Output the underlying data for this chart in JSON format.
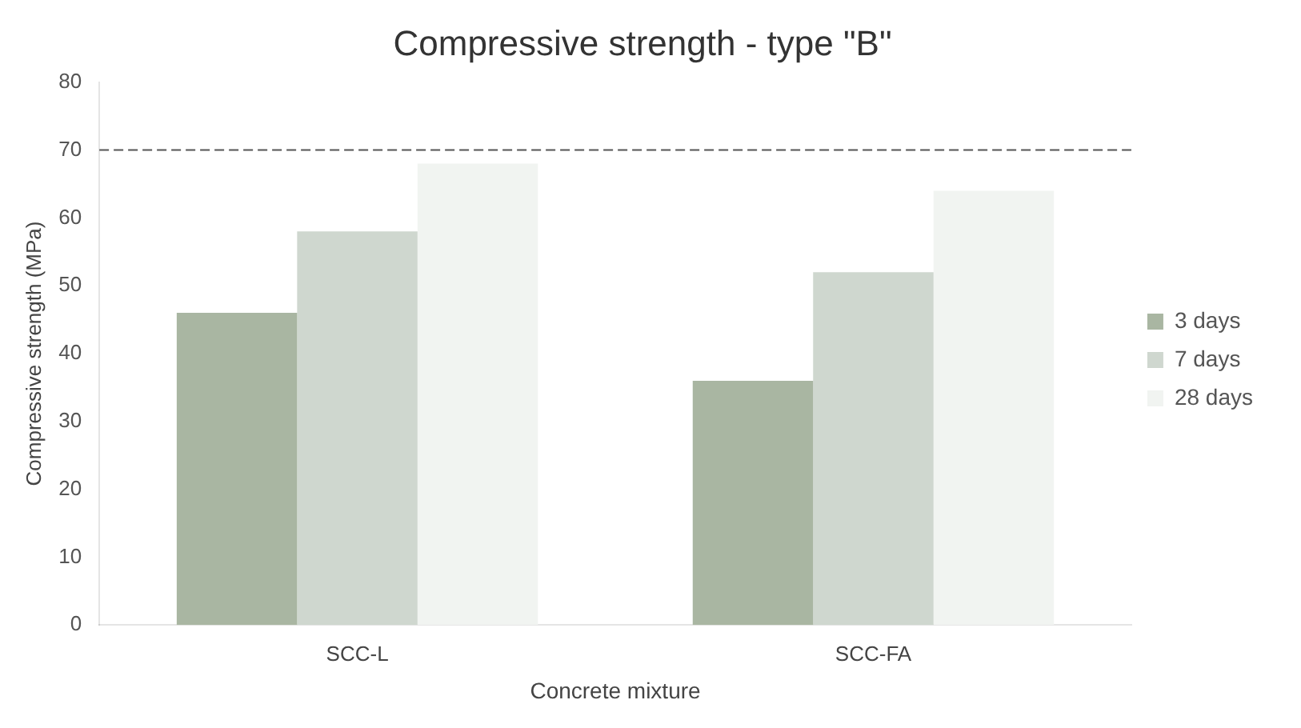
{
  "chart_data": {
    "type": "bar",
    "title": "Compressive strength - type \"B\"",
    "xlabel": "Concrete mixture",
    "ylabel": "Compressive strength (MPa)",
    "categories": [
      "SCC-L",
      "SCC-FA"
    ],
    "series": [
      {
        "name": "3 days",
        "color": "#a9b6a2",
        "values": [
          46,
          36
        ]
      },
      {
        "name": "7 days",
        "color": "#cfd7cf",
        "values": [
          58,
          52
        ]
      },
      {
        "name": "28 days",
        "color": "#f1f4f1",
        "values": [
          68,
          64
        ]
      }
    ],
    "ylim": [
      0,
      80
    ],
    "yticks": [
      0,
      10,
      20,
      30,
      40,
      50,
      60,
      70,
      80
    ],
    "grid": false,
    "legend": "right",
    "ref_lines": [
      {
        "axis": "y",
        "value": 70,
        "color": "#555555",
        "line_style": "dashed"
      }
    ]
  }
}
